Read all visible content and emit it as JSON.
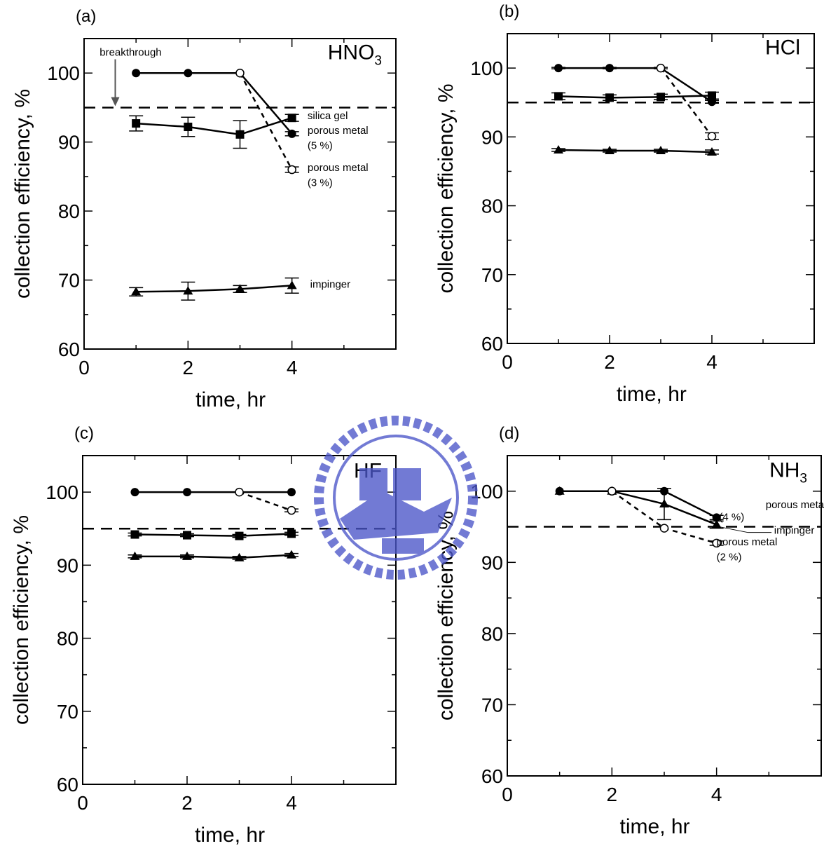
{
  "chart_data": [
    {
      "type": "line",
      "panel_label": "(a)",
      "species": {
        "main": "HNO",
        "sub": "3"
      },
      "xlabel": "time, hr",
      "ylabel": "collection efficiency, %",
      "xlim": [
        0,
        6
      ],
      "ylim": [
        60,
        105
      ],
      "x_ticks": [
        0,
        2,
        4
      ],
      "y_ticks": [
        60,
        70,
        80,
        90,
        100
      ],
      "threshold": 95,
      "grid": false,
      "series": [
        {
          "marker": "circle-filled",
          "dash": false,
          "points": [
            [
              1,
              100,
              0
            ],
            [
              2,
              100,
              0
            ],
            [
              3,
              100,
              0
            ],
            [
              4,
              91.2,
              0.3
            ]
          ]
        },
        {
          "marker": "circle-open",
          "dash": true,
          "points": [
            [
              3,
              100,
              0
            ],
            [
              4,
              86,
              0.4
            ]
          ]
        },
        {
          "marker": "square-filled",
          "dash": false,
          "points": [
            [
              1,
              92.7,
              1.1
            ],
            [
              2,
              92.2,
              1.4
            ],
            [
              3,
              91.1,
              2.0
            ],
            [
              4,
              93.5,
              0.5
            ]
          ]
        },
        {
          "marker": "triangle-filled",
          "dash": false,
          "points": [
            [
              1,
              68.3,
              0.6
            ],
            [
              2,
              68.4,
              1.3
            ],
            [
              3,
              68.7,
              0.5
            ],
            [
              4,
              69.2,
              1.1
            ]
          ]
        }
      ],
      "annotations": [
        {
          "text": "breakthrough",
          "x": 0.3,
          "y": 102.5,
          "anchor": "start"
        },
        {
          "text": "silica gel",
          "x": 4.3,
          "y": 93.3,
          "anchor": "start"
        },
        {
          "text": "porous metal",
          "x": 4.3,
          "y": 91.2,
          "anchor": "start"
        },
        {
          "text": "(5 %)",
          "x": 4.3,
          "y": 89.0,
          "anchor": "start"
        },
        {
          "text": "porous metal",
          "x": 4.3,
          "y": 85.8,
          "anchor": "start"
        },
        {
          "text": "(3 %)",
          "x": 4.3,
          "y": 83.6,
          "anchor": "start"
        },
        {
          "text": "impinger",
          "x": 4.35,
          "y": 68.9,
          "anchor": "start"
        }
      ]
    },
    {
      "type": "line",
      "panel_label": "(b)",
      "species": {
        "main": "HCl",
        "sub": ""
      },
      "xlabel": "time, hr",
      "ylabel": "collection efficiency, %",
      "xlim": [
        0,
        6
      ],
      "ylim": [
        60,
        105
      ],
      "x_ticks": [
        0,
        2,
        4
      ],
      "y_ticks": [
        60,
        70,
        80,
        90,
        100
      ],
      "threshold": 95,
      "grid": false,
      "series": [
        {
          "marker": "circle-filled",
          "dash": false,
          "points": [
            [
              1,
              100,
              0.1
            ],
            [
              2,
              100,
              0.1
            ],
            [
              3,
              100,
              0.1
            ],
            [
              4,
              95.1,
              0.2
            ]
          ]
        },
        {
          "marker": "circle-open",
          "dash": true,
          "points": [
            [
              3,
              100,
              0
            ],
            [
              4,
              90.1,
              0.5
            ]
          ]
        },
        {
          "marker": "square-filled",
          "dash": false,
          "points": [
            [
              1,
              95.9,
              0.5
            ],
            [
              2,
              95.7,
              0.4
            ],
            [
              3,
              95.8,
              0.4
            ],
            [
              4,
              96.0,
              0.5
            ]
          ]
        },
        {
          "marker": "triangle-filled",
          "dash": false,
          "points": [
            [
              1,
              88.1,
              0.2
            ],
            [
              2,
              88.0,
              0.2
            ],
            [
              3,
              88.0,
              0.2
            ],
            [
              4,
              87.8,
              0.3
            ]
          ]
        }
      ],
      "annotations": []
    },
    {
      "type": "line",
      "panel_label": "(c)",
      "species": {
        "main": "HF",
        "sub": ""
      },
      "xlabel": "time, hr",
      "ylabel": "collection efficiency, %",
      "xlim": [
        0,
        6
      ],
      "ylim": [
        60,
        105
      ],
      "x_ticks": [
        0,
        2,
        4
      ],
      "y_ticks": [
        60,
        70,
        80,
        90,
        100
      ],
      "threshold": 95,
      "grid": false,
      "series": [
        {
          "marker": "circle-filled",
          "dash": false,
          "points": [
            [
              1,
              100,
              0
            ],
            [
              2,
              100,
              0
            ],
            [
              3,
              100,
              0
            ],
            [
              4,
              100,
              0
            ]
          ]
        },
        {
          "marker": "circle-open",
          "dash": true,
          "points": [
            [
              3,
              100,
              0
            ],
            [
              4,
              97.5,
              0.2
            ]
          ]
        },
        {
          "marker": "square-filled",
          "dash": false,
          "points": [
            [
              1,
              94.2,
              0.2
            ],
            [
              2,
              94.1,
              0.2
            ],
            [
              3,
              94.0,
              0.2
            ],
            [
              4,
              94.3,
              0.2
            ]
          ]
        },
        {
          "marker": "triangle-filled",
          "dash": false,
          "points": [
            [
              1,
              91.2,
              0.2
            ],
            [
              2,
              91.2,
              0.2
            ],
            [
              3,
              91.0,
              0.2
            ],
            [
              4,
              91.4,
              0.2
            ]
          ]
        }
      ],
      "annotations": []
    },
    {
      "type": "line",
      "panel_label": "(d)",
      "species": {
        "main": "NH",
        "sub": "3"
      },
      "xlabel": "time, hr",
      "ylabel": "collection efficiency, %",
      "xlim": [
        0,
        6
      ],
      "ylim": [
        60,
        105
      ],
      "x_ticks": [
        0,
        2,
        4
      ],
      "y_ticks": [
        60,
        70,
        80,
        90,
        100
      ],
      "threshold": 95,
      "grid": false,
      "series": [
        {
          "marker": "circle-filled",
          "dash": false,
          "points": [
            [
              1,
              100,
              0
            ],
            [
              2,
              100,
              0
            ],
            [
              3,
              100,
              0
            ],
            [
              4,
              96.3,
              0.3
            ]
          ]
        },
        {
          "marker": "triangle-filled",
          "dash": false,
          "points": [
            [
              1,
              100,
              0
            ],
            [
              2,
              100,
              0
            ],
            [
              3,
              98.2,
              2.2
            ],
            [
              4,
              95.3,
              0.5
            ]
          ]
        },
        {
          "marker": "circle-open",
          "dash": true,
          "points": [
            [
              2,
              100,
              0
            ],
            [
              3,
              94.8,
              0
            ],
            [
              4,
              92.7,
              0.3
            ]
          ]
        }
      ],
      "annotations": [
        {
          "text": "porous metal",
          "x": 6.1,
          "y": 97.6,
          "anchor": "end"
        },
        {
          "text": "(4 %)",
          "x": 4.05,
          "y": 95.9,
          "anchor": "start"
        },
        {
          "text": "impinger",
          "x": 5.1,
          "y": 94.0,
          "anchor": "start"
        },
        {
          "text": "porous metal",
          "x": 4.0,
          "y": 92.4,
          "anchor": "start"
        },
        {
          "text": "(2 %)",
          "x": 4.0,
          "y": 90.3,
          "anchor": "start"
        }
      ]
    }
  ]
}
